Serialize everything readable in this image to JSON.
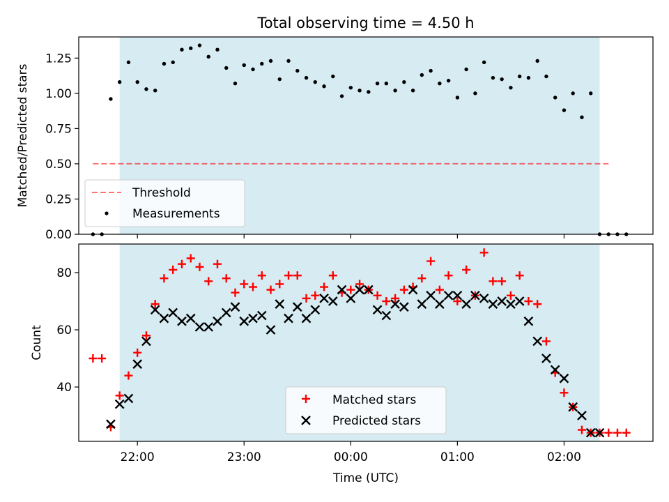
{
  "title": "Total observing time = 4.50 h",
  "colors": {
    "shade": "#add8e6",
    "threshold": "#ff0000",
    "measurement": "#000000",
    "matched": "#ff0000",
    "predicted": "#000000"
  },
  "chart_data": [
    {
      "type": "scatter",
      "ylabel": "Matched/Predicted stars",
      "xlabel": "",
      "ylim": [
        0,
        1.4
      ],
      "yticks": [
        "0.00",
        "0.25",
        "0.50",
        "0.75",
        "1.00",
        "1.25"
      ],
      "shaded_span": [
        "21:50",
        "02:20"
      ],
      "legend": {
        "position": "lower-left",
        "entries": [
          "Threshold",
          "Measurements"
        ]
      },
      "threshold": {
        "name": "Threshold",
        "value": 0.5,
        "x_range": [
          "21:35",
          "02:25"
        ]
      },
      "series": [
        {
          "name": "Measurements",
          "x": [
            "21:35",
            "21:40",
            "21:45",
            "21:50",
            "21:55",
            "22:00",
            "22:05",
            "22:10",
            "22:15",
            "22:20",
            "22:25",
            "22:30",
            "22:35",
            "22:40",
            "22:45",
            "22:50",
            "22:55",
            "23:00",
            "23:05",
            "23:10",
            "23:15",
            "23:20",
            "23:25",
            "23:30",
            "23:35",
            "23:40",
            "23:45",
            "23:50",
            "23:55",
            "00:00",
            "00:05",
            "00:10",
            "00:15",
            "00:20",
            "00:25",
            "00:30",
            "00:35",
            "00:40",
            "00:45",
            "00:50",
            "00:55",
            "01:00",
            "01:05",
            "01:10",
            "01:15",
            "01:20",
            "01:25",
            "01:30",
            "01:35",
            "01:40",
            "01:45",
            "01:50",
            "01:55",
            "02:00",
            "02:05",
            "02:10",
            "02:15",
            "02:20",
            "02:25",
            "02:30",
            "02:35"
          ],
          "values": [
            0.0,
            0.0,
            0.96,
            1.08,
            1.22,
            1.08,
            1.03,
            1.02,
            1.21,
            1.22,
            1.31,
            1.32,
            1.34,
            1.26,
            1.31,
            1.18,
            1.07,
            1.2,
            1.17,
            1.21,
            1.23,
            1.1,
            1.23,
            1.16,
            1.11,
            1.08,
            1.05,
            1.12,
            0.98,
            1.04,
            1.02,
            1.01,
            1.07,
            1.07,
            1.02,
            1.08,
            1.02,
            1.13,
            1.16,
            1.07,
            1.09,
            0.97,
            1.17,
            1.0,
            1.22,
            1.11,
            1.1,
            1.04,
            1.12,
            1.11,
            1.23,
            1.12,
            0.97,
            0.88,
            1.0,
            0.83,
            1.0,
            0.0,
            0.0,
            0.0,
            0.0
          ]
        }
      ]
    },
    {
      "type": "scatter",
      "ylabel": "Count",
      "xlabel": "Time (UTC)",
      "ylim": [
        21,
        90
      ],
      "xlim": [
        "21:27",
        "02:50"
      ],
      "xticks": [
        "22:00",
        "23:00",
        "00:00",
        "01:00",
        "02:00"
      ],
      "yticks": [
        "40",
        "60",
        "80"
      ],
      "shaded_span": [
        "21:50",
        "02:20"
      ],
      "legend": {
        "position": "lower-center",
        "entries": [
          "Matched stars",
          "Predicted stars"
        ]
      },
      "series": [
        {
          "name": "Matched stars",
          "x": [
            "21:35",
            "21:40",
            "21:45",
            "21:50",
            "21:55",
            "22:00",
            "22:05",
            "22:10",
            "22:15",
            "22:20",
            "22:25",
            "22:30",
            "22:35",
            "22:40",
            "22:45",
            "22:50",
            "22:55",
            "23:00",
            "23:05",
            "23:10",
            "23:15",
            "23:20",
            "23:25",
            "23:30",
            "23:35",
            "23:40",
            "23:45",
            "23:50",
            "23:55",
            "00:00",
            "00:05",
            "00:10",
            "00:15",
            "00:20",
            "00:25",
            "00:30",
            "00:35",
            "00:40",
            "00:45",
            "00:50",
            "00:55",
            "01:00",
            "01:05",
            "01:10",
            "01:15",
            "01:20",
            "01:25",
            "01:30",
            "01:35",
            "01:40",
            "01:45",
            "01:50",
            "01:55",
            "02:00",
            "02:05",
            "02:10",
            "02:15",
            "02:20",
            "02:25",
            "02:30",
            "02:35"
          ],
          "values": [
            50,
            50,
            26,
            37,
            44,
            52,
            58,
            69,
            78,
            81,
            83,
            85,
            82,
            77,
            83,
            78,
            73,
            76,
            75,
            79,
            74,
            76,
            79,
            79,
            71,
            72,
            75,
            79,
            73,
            74,
            76,
            74,
            72,
            70,
            71,
            74,
            75,
            78,
            84,
            74,
            79,
            70,
            81,
            72,
            87,
            77,
            77,
            72,
            79,
            70,
            69,
            56,
            45,
            38,
            33,
            25,
            24,
            24,
            24,
            24,
            24
          ]
        },
        {
          "name": "Predicted stars",
          "x": [
            "21:45",
            "21:50",
            "21:55",
            "22:00",
            "22:05",
            "22:10",
            "22:15",
            "22:20",
            "22:25",
            "22:30",
            "22:35",
            "22:40",
            "22:45",
            "22:50",
            "22:55",
            "23:00",
            "23:05",
            "23:10",
            "23:15",
            "23:20",
            "23:25",
            "23:30",
            "23:35",
            "23:40",
            "23:45",
            "23:50",
            "23:55",
            "00:00",
            "00:05",
            "00:10",
            "00:15",
            "00:20",
            "00:25",
            "00:30",
            "00:35",
            "00:40",
            "00:45",
            "00:50",
            "00:55",
            "01:00",
            "01:05",
            "01:10",
            "01:15",
            "01:20",
            "01:25",
            "01:30",
            "01:35",
            "01:40",
            "01:45",
            "01:50",
            "01:55",
            "02:00",
            "02:05",
            "02:10",
            "02:15",
            "02:20"
          ],
          "values": [
            27,
            34,
            36,
            48,
            56,
            67,
            64,
            66,
            63,
            64,
            61,
            61,
            63,
            66,
            68,
            63,
            64,
            65,
            60,
            69,
            64,
            68,
            64,
            67,
            71,
            70,
            74,
            71,
            74,
            74,
            67,
            65,
            69,
            68,
            74,
            69,
            72,
            69,
            72,
            72,
            69,
            72,
            71,
            69,
            70,
            69,
            70,
            63,
            56,
            50,
            46,
            43,
            33,
            30,
            24,
            24
          ]
        }
      ]
    }
  ]
}
